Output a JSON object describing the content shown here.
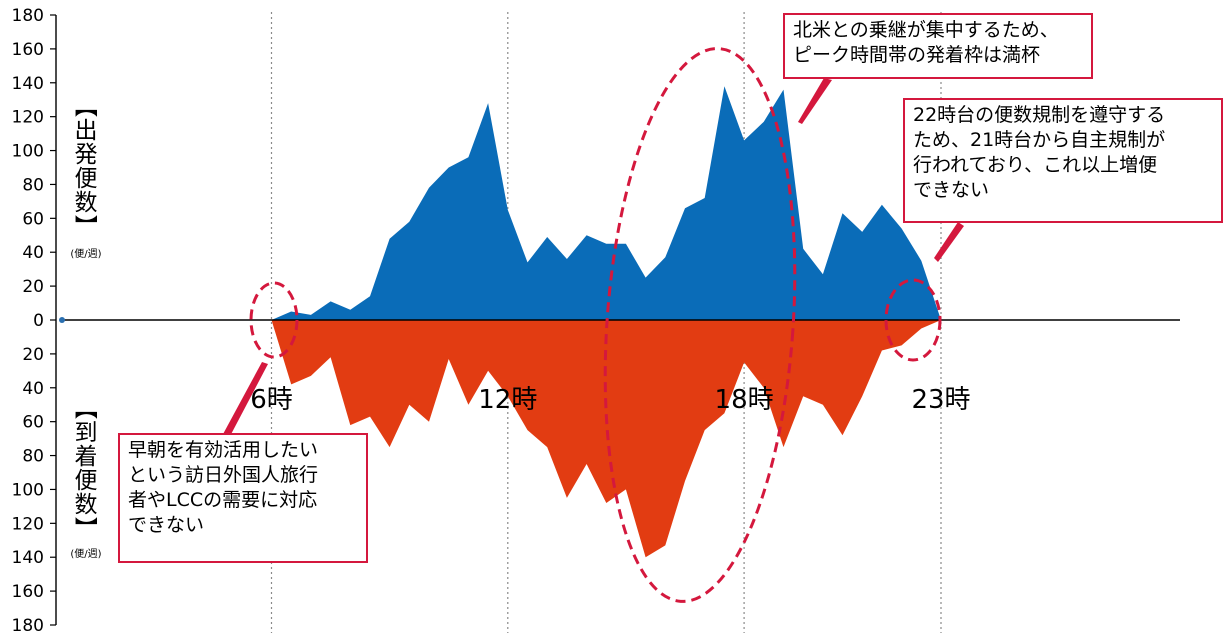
{
  "chart_data": {
    "type": "area",
    "x_label_format": "時",
    "x_range": [
      -5,
      23
    ],
    "ylim": [
      -180,
      180
    ],
    "y_ticks": [
      180,
      160,
      140,
      120,
      100,
      80,
      60,
      40,
      20,
      0,
      20,
      40,
      60,
      80,
      100,
      120,
      140,
      160,
      180
    ],
    "hour_labels": [
      "6時",
      "12時",
      "18時",
      "23時"
    ],
    "y_label_top": "【出発便数】",
    "y_label_top_unit": "(便/週)",
    "y_label_bottom": "【到着便数】",
    "y_label_bottom_unit": "(便/週)",
    "series": [
      {
        "name": "出発便数",
        "color": "#0a6cb8",
        "x": [
          6,
          6.5,
          7,
          7.5,
          8,
          8.5,
          9,
          9.5,
          10,
          10.5,
          11,
          11.5,
          12,
          12.5,
          13,
          13.5,
          14,
          14.5,
          15,
          15.5,
          16,
          16.5,
          17,
          17.5,
          18,
          18.5,
          19,
          19.5,
          20,
          20.5,
          21,
          21.5,
          22,
          22.5,
          23
        ],
        "values": [
          0,
          5,
          3,
          11,
          6,
          14,
          48,
          58,
          78,
          90,
          96,
          128,
          65,
          34,
          49,
          36,
          50,
          45,
          45,
          25,
          37,
          66,
          72,
          138,
          106,
          117,
          136,
          42,
          27,
          63,
          52,
          68,
          54,
          35,
          0
        ]
      },
      {
        "name": "到着便数",
        "color": "#e23c12",
        "x": [
          6,
          6.5,
          7,
          7.5,
          8,
          8.5,
          9,
          9.5,
          10,
          10.5,
          11,
          11.5,
          12,
          12.5,
          13,
          13.5,
          14,
          14.5,
          15,
          15.5,
          16,
          16.5,
          17,
          17.5,
          18,
          18.5,
          19,
          19.5,
          20,
          20.5,
          21,
          21.5,
          22,
          22.5,
          23
        ],
        "values": [
          0,
          -38,
          -33,
          -22,
          -62,
          -57,
          -75,
          -50,
          -60,
          -23,
          -50,
          -30,
          -45,
          -65,
          -75,
          -105,
          -85,
          -108,
          -100,
          -140,
          -133,
          -95,
          -65,
          -55,
          -25,
          -40,
          -75,
          -45,
          -50,
          -68,
          -45,
          -18,
          -15,
          -5,
          0
        ]
      }
    ]
  },
  "annotations": {
    "top_middle": "北米との乗継が集中するため、\nピーク時間帯の発着枠は満杯",
    "top_right": "22時台の便数規制を遵守する\nため、21時台から自主規制が\n行われており、これ以上増便\nできない",
    "bottom_left": "早朝を有効活用したい\nという訪日外国人旅行\n者やLCCの需要に対応\nできない",
    "highlight_color": "#d4183d"
  }
}
